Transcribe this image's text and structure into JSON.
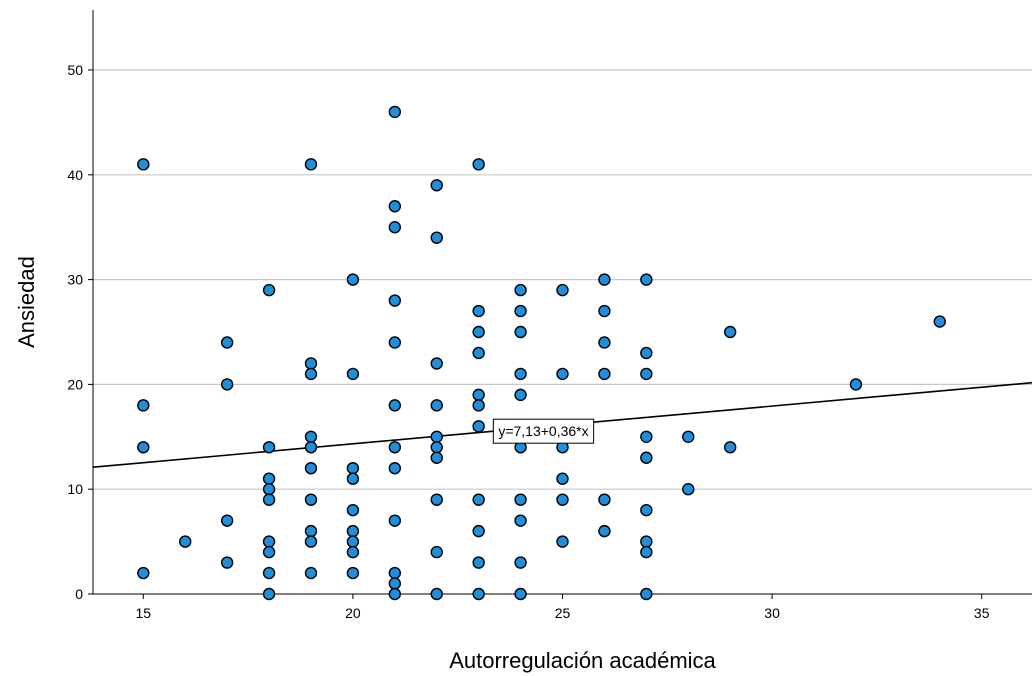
{
  "chart_data": {
    "type": "scatter",
    "xlabel": "Autorregulación académica",
    "ylabel": "Ansiedad",
    "xlim": [
      13.8,
      36.2
    ],
    "ylim": [
      0,
      55
    ],
    "xticks": [
      "15",
      "20",
      "25",
      "30",
      "35"
    ],
    "xtick_values": [
      15,
      20,
      25,
      30,
      35
    ],
    "yticks": [
      "0",
      "10",
      "20",
      "30",
      "40",
      "50"
    ],
    "ytick_values": [
      0,
      10,
      20,
      30,
      40,
      50
    ],
    "grid": "horizontal",
    "colors": {
      "marker_fill": "#1f8fdc",
      "marker_edge": "#000000",
      "grid": "#c8c8c8",
      "fit_line": "#000000"
    },
    "fit_line": {
      "intercept": 7.13,
      "slope": 0.36,
      "label": "y=7,13+0,36*x"
    },
    "points": [
      [
        15,
        41
      ],
      [
        15,
        18
      ],
      [
        15,
        14
      ],
      [
        15,
        2
      ],
      [
        16,
        5
      ],
      [
        17,
        24
      ],
      [
        17,
        20
      ],
      [
        17,
        7
      ],
      [
        17,
        3
      ],
      [
        18,
        29
      ],
      [
        18,
        14
      ],
      [
        18,
        11
      ],
      [
        18,
        10
      ],
      [
        18,
        9
      ],
      [
        18,
        5
      ],
      [
        18,
        4
      ],
      [
        18,
        2
      ],
      [
        18,
        0
      ],
      [
        19,
        41
      ],
      [
        19,
        22
      ],
      [
        19,
        21
      ],
      [
        19,
        15
      ],
      [
        19,
        14
      ],
      [
        19,
        12
      ],
      [
        19,
        9
      ],
      [
        19,
        6
      ],
      [
        19,
        5
      ],
      [
        19,
        2
      ],
      [
        20,
        30
      ],
      [
        20,
        21
      ],
      [
        20,
        12
      ],
      [
        20,
        11
      ],
      [
        20,
        8
      ],
      [
        20,
        6
      ],
      [
        20,
        5
      ],
      [
        20,
        4
      ],
      [
        20,
        2
      ],
      [
        21,
        46
      ],
      [
        21,
        37
      ],
      [
        21,
        35
      ],
      [
        21,
        28
      ],
      [
        21,
        24
      ],
      [
        21,
        18
      ],
      [
        21,
        14
      ],
      [
        21,
        12
      ],
      [
        21,
        7
      ],
      [
        21,
        2
      ],
      [
        21,
        1
      ],
      [
        21,
        0
      ],
      [
        22,
        39
      ],
      [
        22,
        34
      ],
      [
        22,
        22
      ],
      [
        22,
        18
      ],
      [
        22,
        15
      ],
      [
        22,
        14
      ],
      [
        22,
        13
      ],
      [
        22,
        9
      ],
      [
        22,
        4
      ],
      [
        22,
        0
      ],
      [
        23,
        41
      ],
      [
        23,
        27
      ],
      [
        23,
        25
      ],
      [
        23,
        23
      ],
      [
        23,
        19
      ],
      [
        23,
        18
      ],
      [
        23,
        16
      ],
      [
        23,
        9
      ],
      [
        23,
        6
      ],
      [
        23,
        3
      ],
      [
        23,
        0
      ],
      [
        24,
        29
      ],
      [
        24,
        27
      ],
      [
        24,
        25
      ],
      [
        24,
        21
      ],
      [
        24,
        19
      ],
      [
        24,
        14
      ],
      [
        24,
        9
      ],
      [
        24,
        7
      ],
      [
        24,
        3
      ],
      [
        24,
        0
      ],
      [
        25,
        29
      ],
      [
        25,
        21
      ],
      [
        25,
        14
      ],
      [
        25,
        11
      ],
      [
        25,
        9
      ],
      [
        25,
        5
      ],
      [
        26,
        30
      ],
      [
        26,
        27
      ],
      [
        26,
        24
      ],
      [
        26,
        21
      ],
      [
        26,
        9
      ],
      [
        26,
        6
      ],
      [
        27,
        30
      ],
      [
        27,
        23
      ],
      [
        27,
        21
      ],
      [
        27,
        15
      ],
      [
        27,
        13
      ],
      [
        27,
        8
      ],
      [
        27,
        5
      ],
      [
        27,
        4
      ],
      [
        27,
        0
      ],
      [
        28,
        15
      ],
      [
        28,
        10
      ],
      [
        29,
        25
      ],
      [
        29,
        14
      ],
      [
        32,
        20
      ],
      [
        34,
        26
      ]
    ]
  }
}
